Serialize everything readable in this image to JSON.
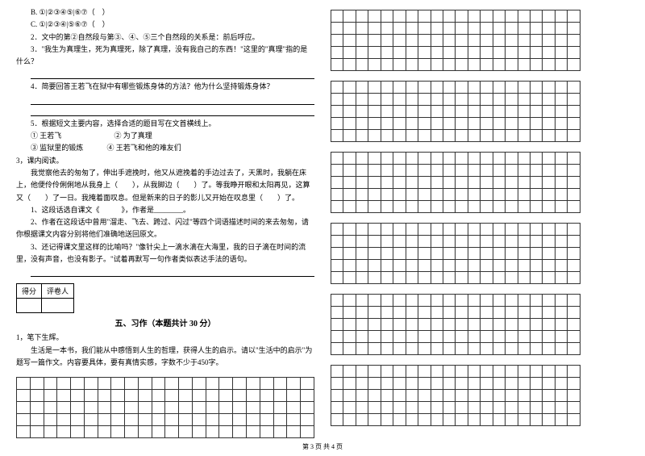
{
  "questions": {
    "optB": "B. ①|②③④⑤|⑥⑦（　）",
    "optC": "C. ①|②③④|⑤⑥⑦（　）",
    "q2": "2．文中的第②自然段与第③、④、⑤三个自然段的关系是：前后呼应。",
    "q3": "3．\"我生为真理生，死为真理死，除了真理，没有我自己的东西！\"这里的\"真理\"指的是什么？",
    "q4": "4．简要回答王若飞在狱中有哪些锻炼身体的方法？他为什么坚持锻炼身体？",
    "q5": "5．根据短文主要内容，选择合适的题目写在文首横线上。",
    "q5_1": "① 王若飞",
    "q5_2": "② 为了真理",
    "q5_3": "③ 监狱里的锻炼",
    "q5_4": "④ 王若飞和他的难友们",
    "s3": "3，课内阅读。",
    "p1": "我觉察他去的匆匆了，伸出手遮挽时，他又从遮挽着的手边过去了，天黑时，我躺在床上，他便伶伶俐俐地从我身上（　　），从我脚边（　　）了。等我睁开眼和太阳再见，这算又（　　）了一日。我掩着面叹息。但是新来的日子的影儿又开始在叹息里（　　）了。",
    "sub1": "1、这段话选自课文《　　　》，作者是________。",
    "sub2": "2、作者在这段话中曾用\"溜走、飞去、跨过、闪过\"等四个词语描述时间的来去匆匆，请你根据课文内容分别将他们准确地送回原文。",
    "sub3": "3、还记得课文里这样的比喻吗？\"像针尖上一滴水滴在大海里，我的日子滴在时间的流里，没有声音，也没有影子。\"试着再默写一句作者类似表达手法的语句。"
  },
  "scorebox": {
    "h1": "得分",
    "h2": "评卷人"
  },
  "section5": {
    "title": "五、习作（本题共计 30 分）",
    "intro": "1，笔下生辉。",
    "body": "生活是一本书，我们能从中感悟到人生的哲理，获得人生的启示。请以\"生活中的启示\"为题写一篇作文。内容要具体，要有真情实感，字数不少于450字。"
  },
  "footer": "第 3 页 共 4 页",
  "grid": {
    "leftCols": 22,
    "leftRows": 5,
    "rightCols": 20,
    "rightRowsPerBlock": 5,
    "rightBlocks": 6
  },
  "colors": {
    "text": "#000000",
    "bg": "#ffffff",
    "border": "#333333"
  }
}
